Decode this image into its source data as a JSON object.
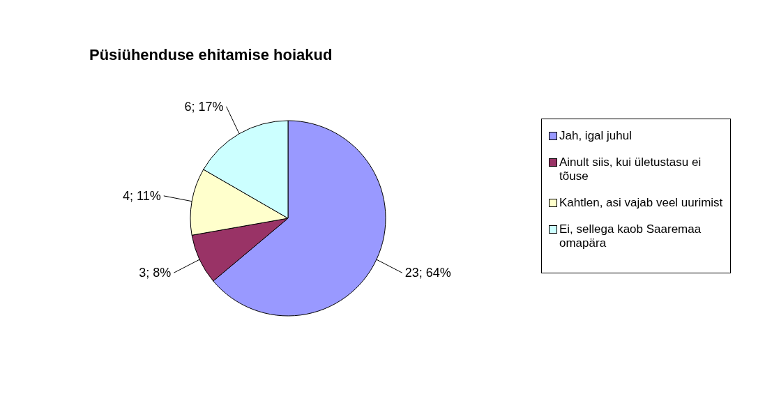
{
  "chart_data": {
    "type": "pie",
    "title": "Püsiühenduse ehitamise hoiakud",
    "categories": [
      "Jah, igal juhul",
      "Ainult siis, kui ületustasu ei tõuse",
      "Kahtlen, asi vajab veel uurimist",
      "Ei, sellega kaob Saaremaa omapära"
    ],
    "values": [
      23,
      3,
      4,
      6
    ],
    "value_labels": [
      "23; 64%",
      "3; 8%",
      "4; 11%",
      "6; 17%"
    ],
    "colors": [
      "#9999ff",
      "#993366",
      "#ffffcc",
      "#ccffff"
    ],
    "legend": "right"
  }
}
